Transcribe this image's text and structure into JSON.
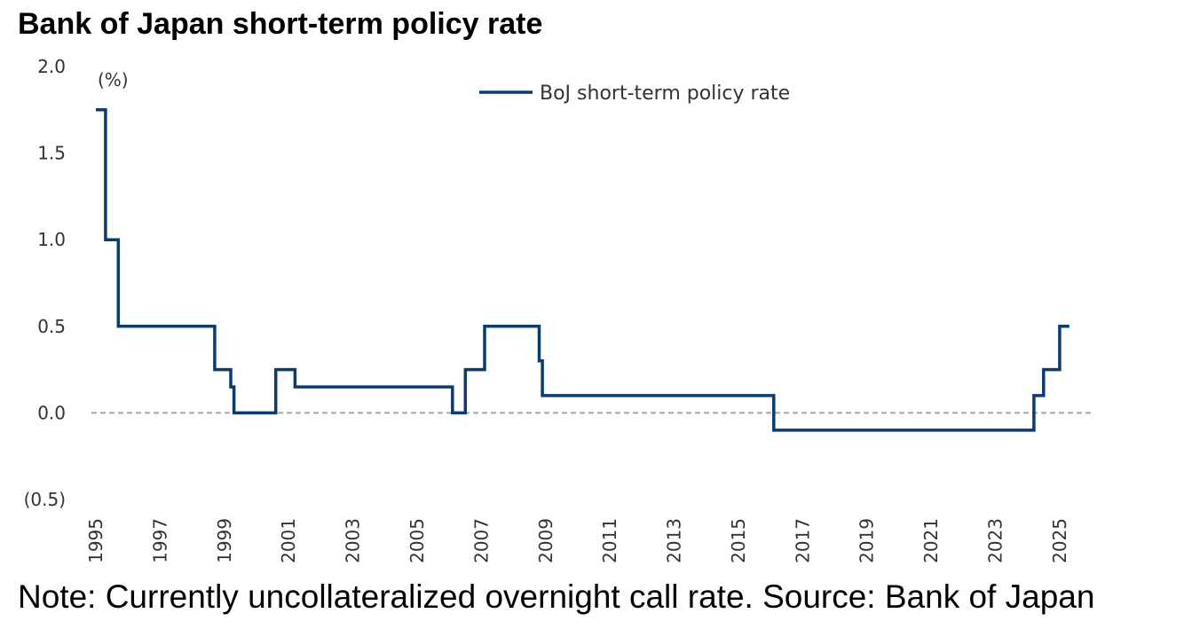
{
  "title": "Bank of Japan short-term policy rate",
  "note": "Note: Currently uncollateralized overnight call rate. Source: Bank of Japan",
  "colors": {
    "series": "#0c3b6e",
    "zero_line": "#a6a6a6"
  },
  "chart_data": {
    "type": "line",
    "title": "Bank of Japan short-term policy rate",
    "unit_label": "(%)",
    "ylim": [
      -0.5,
      2.0
    ],
    "xlim": [
      1995,
      2025.5
    ],
    "y_ticks": [
      {
        "value": 2.0,
        "label": "2.0"
      },
      {
        "value": 1.5,
        "label": "1.5"
      },
      {
        "value": 1.0,
        "label": "1.0"
      },
      {
        "value": 0.5,
        "label": "0.5"
      },
      {
        "value": 0.0,
        "label": "0.0"
      },
      {
        "value": -0.5,
        "label": "(0.5)"
      }
    ],
    "x_ticks": [
      "1995",
      "1997",
      "1999",
      "2001",
      "2003",
      "2005",
      "2007",
      "2009",
      "2011",
      "2013",
      "2015",
      "2017",
      "2019",
      "2021",
      "2023",
      "2025"
    ],
    "zero_line": "dashed",
    "legend_position": "top-center",
    "series": [
      {
        "name": "BoJ short-term policy rate",
        "step": true,
        "points": [
          [
            1995.0,
            1.75
          ],
          [
            1995.3,
            1.0
          ],
          [
            1995.7,
            0.5
          ],
          [
            1998.7,
            0.25
          ],
          [
            1999.2,
            0.15
          ],
          [
            1999.3,
            0.0
          ],
          [
            2000.6,
            0.25
          ],
          [
            2001.2,
            0.15
          ],
          [
            2006.1,
            0.0
          ],
          [
            2006.5,
            0.25
          ],
          [
            2007.1,
            0.5
          ],
          [
            2008.8,
            0.3
          ],
          [
            2008.9,
            0.1
          ],
          [
            2016.1,
            -0.1
          ],
          [
            2024.2,
            0.1
          ],
          [
            2024.5,
            0.25
          ],
          [
            2025.0,
            0.5
          ],
          [
            2025.3,
            0.5
          ]
        ]
      }
    ]
  }
}
